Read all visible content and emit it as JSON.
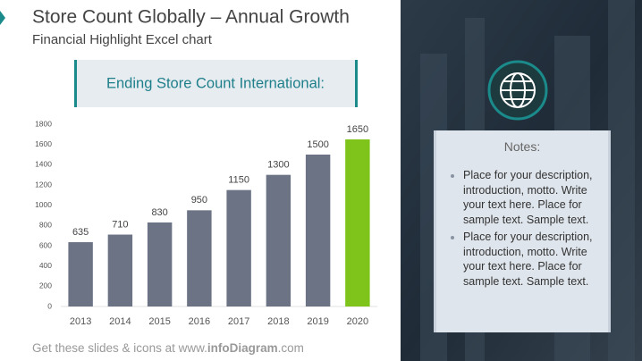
{
  "title": "Store Count Globally – Annual Growth",
  "subtitle": "Financial Highlight Excel chart",
  "chart_data": {
    "type": "bar",
    "title": "Ending Store Count International:",
    "categories": [
      "2013",
      "2014",
      "2015",
      "2016",
      "2017",
      "2018",
      "2019",
      "2020"
    ],
    "values": [
      635,
      710,
      830,
      950,
      1150,
      1300,
      1500,
      1650
    ],
    "colors": [
      "#6b7385",
      "#6b7385",
      "#6b7385",
      "#6b7385",
      "#6b7385",
      "#6b7385",
      "#6b7385",
      "#7ec41a"
    ],
    "ylim": [
      0,
      1800
    ],
    "yticks": [
      0,
      200,
      400,
      600,
      800,
      1000,
      1200,
      1400,
      1600,
      1800
    ],
    "grid": false
  },
  "notes": {
    "title": "Notes:",
    "items": [
      "Place for your description, introduction, motto. Write your text here. Place for sample text. Sample text.",
      "Place for your description, introduction, motto. Write your text here. Place for sample text. Sample text."
    ]
  },
  "footer": {
    "prefix": "Get these slides & icons at www.",
    "brand": "infoDiagram",
    "suffix": ".com"
  }
}
